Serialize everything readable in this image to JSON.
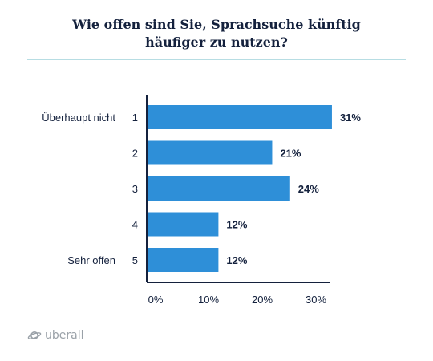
{
  "chart_data": {
    "type": "bar",
    "orientation": "horizontal",
    "title": "Wie offen sind Sie, Sprachsuche künftig häufiger zu nutzen?",
    "categories": [
      "1",
      "2",
      "3",
      "4",
      "5"
    ],
    "category_labels": [
      "Überhaupt nicht",
      "",
      "",
      "",
      "Sehr offen"
    ],
    "values": [
      31,
      21,
      24,
      12,
      12
    ],
    "value_labels": [
      "31%",
      "21%",
      "24%",
      "12%",
      "12%"
    ],
    "xticks": [
      "0%",
      "10%",
      "20%",
      "30%"
    ],
    "xlim": [
      0,
      31
    ],
    "color": "#2e8fd8",
    "grid": false,
    "legend": "none"
  },
  "title_lines": [
    "Wie offen sind Sie, Sprachsuche künftig",
    "häufiger zu nutzen?"
  ],
  "logo": {
    "text": "uberall",
    "icon": "planet-icon"
  },
  "colors": {
    "title": "#14213d",
    "axis": "#14213d",
    "divider": "#b7dde3",
    "logo": "#9aa1a8"
  }
}
